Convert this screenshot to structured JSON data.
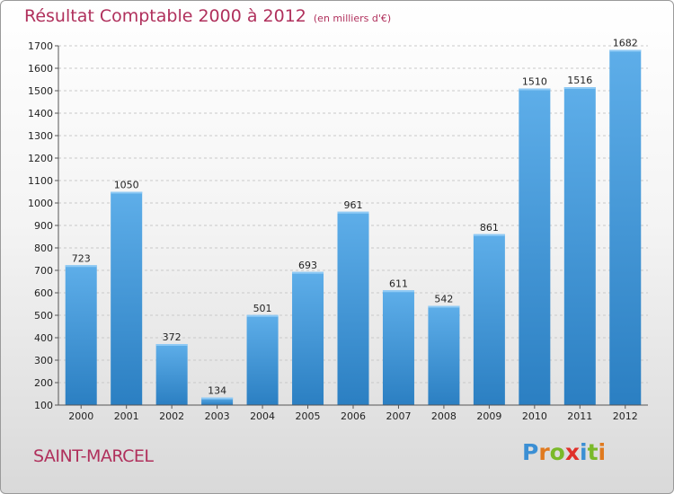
{
  "title": "Résultat Comptable 2000 à 2012",
  "subtitle": "(en milliers d'€)",
  "city": "SAINT-MARCEL",
  "logo": "Proxiti",
  "colors": {
    "bar_top": "#5eaee9",
    "bar_bottom": "#2b7fc2",
    "title": "#b0305c"
  },
  "chart_data": {
    "type": "bar",
    "title": "Résultat Comptable 2000 à 2012",
    "subtitle": "(en milliers d'€)",
    "categories": [
      "2000",
      "2001",
      "2002",
      "2003",
      "2004",
      "2005",
      "2006",
      "2007",
      "2008",
      "2009",
      "2010",
      "2011",
      "2012"
    ],
    "values": [
      723,
      1050,
      372,
      134,
      501,
      693,
      961,
      611,
      542,
      861,
      1510,
      1516,
      1682
    ],
    "ylim": [
      100,
      1700
    ],
    "yticks": [
      100,
      200,
      300,
      400,
      500,
      600,
      700,
      800,
      900,
      1000,
      1100,
      1200,
      1300,
      1400,
      1500,
      1600,
      1700
    ],
    "grid": true,
    "data_labels": true
  }
}
